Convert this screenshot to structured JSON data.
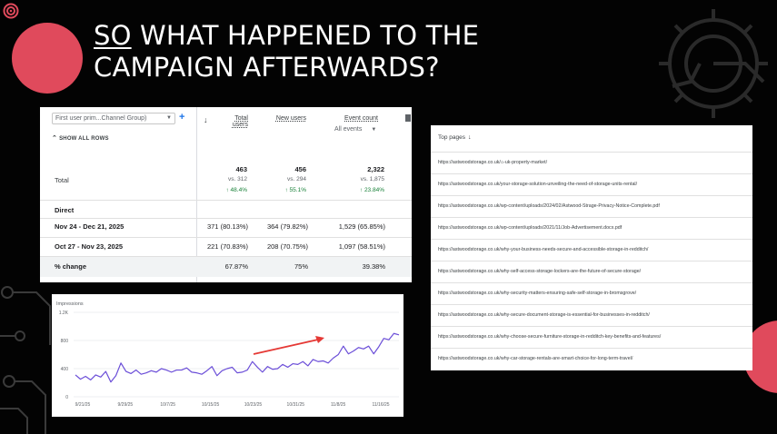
{
  "title": {
    "underlined": "SO",
    "line1_rest": " WHAT HAPPENED TO THE",
    "line2": "CAMPAIGN AFTERWARDS?"
  },
  "colors": {
    "accent": "#e04a5c",
    "background": "#030303",
    "chart_line": "#6b4ed8",
    "arrow": "#e53935",
    "positive": "#188038",
    "link_blue": "#1a73e8"
  },
  "table": {
    "dimension_select": "First user prim...Channel Group)",
    "show_all_rows": "SHOW ALL ROWS",
    "columns": {
      "total_users": [
        "Total",
        "users"
      ],
      "new_users": "New users",
      "event_count": "Event count",
      "event_filter": "All events"
    },
    "total": {
      "label": "Total",
      "total_users": "463",
      "total_users_vs": "vs. 312",
      "total_users_change": "↑ 48.4%",
      "new_users": "456",
      "new_users_vs": "vs. 294",
      "new_users_change": "↑ 55.1%",
      "event_count": "2,322",
      "event_count_vs": "vs. 1,875",
      "event_count_change": "↑ 23.84%"
    },
    "rows": [
      {
        "label": "Direct",
        "bold": false,
        "total_users": "",
        "new_users": "",
        "event_count": ""
      },
      {
        "label": "Nov 24 - Dec 21, 2025",
        "bold": true,
        "total_users": "371 (80.13%)",
        "new_users": "364 (79.82%)",
        "event_count": "1,529 (65.85%)"
      },
      {
        "label": "Oct 27 - Nov 23, 2025",
        "bold": true,
        "total_users": "221 (70.83%)",
        "new_users": "208 (70.75%)",
        "event_count": "1,097 (58.51%)"
      },
      {
        "label": "% change",
        "bold": true,
        "total_users": "67.87%",
        "new_users": "75%",
        "event_count": "39.38%"
      }
    ]
  },
  "chart_data": {
    "type": "line",
    "title": "Impressions",
    "ylim": [
      0,
      1200
    ],
    "y_ticks": [
      "1.2K",
      "800",
      "400",
      "0"
    ],
    "y_tick_values": [
      1200,
      800,
      400,
      0
    ],
    "x_ticks": [
      "9/21/25",
      "9/29/25",
      "10/7/25",
      "10/15/25",
      "10/23/25",
      "10/31/25",
      "11/8/25",
      "11/16/25"
    ],
    "grid": true,
    "annotation": "arrow",
    "series": [
      {
        "values": [
          310,
          250,
          290,
          240,
          310,
          280,
          360,
          210,
          300,
          480,
          360,
          330,
          380,
          320,
          340,
          370,
          350,
          400,
          380,
          350,
          380,
          380,
          410,
          350,
          340,
          320,
          370,
          430,
          300,
          370,
          400,
          420,
          340,
          350,
          380,
          500,
          420,
          350,
          430,
          390,
          400,
          460,
          420,
          470,
          460,
          500,
          440,
          530,
          500,
          510,
          480,
          550,
          600,
          720,
          610,
          650,
          700,
          680,
          720,
          610,
          710,
          830,
          810,
          900,
          880
        ]
      }
    ]
  },
  "top_pages": {
    "header": "Top pages",
    "rows": [
      "https://astwoodstorage.co.uk/⌂-uk-property-market/",
      "https://astwoodstorage.co.uk/your-storage-solution-unveiling-the-need-of-storage-units-rental/",
      "https://astwoodstorage.co.uk/wp-content/uploads/2024/02/Astwood-Strage-Privacy-Notice-Complete.pdf",
      "https://astwoodstorage.co.uk/wp-content/uploads/2021/11/Job-Advertisement.docx.pdf",
      "https://astwoodstorage.co.uk/why-your-business-needs-secure-and-accessible-storage-in-redditch/",
      "https://astwoodstorage.co.uk/why-self-access-storage-lockers-are-the-future-of-secure-storage/",
      "https://astwoodstorage.co.uk/why-security-matters-ensuring-safe-self-storage-in-bromsgrove/",
      "https://astwoodstorage.co.uk/why-secure-document-storage-is-essential-for-businesses-in-redditch/",
      "https://astwoodstorage.co.uk/why-choose-secure-furniture-storage-in-redditch-key-benefits-and-features/",
      "https://astwoodstorage.co.uk/why-car-storage-rentals-are-smart-choice-for-long-term-travel/"
    ]
  }
}
